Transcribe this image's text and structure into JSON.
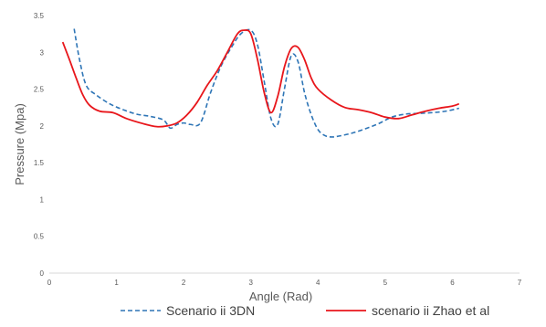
{
  "chart_data": {
    "type": "line",
    "title": "",
    "xlabel": "Angle (Rad)",
    "ylabel": "Pressure (Mpa)",
    "xlim": [
      0,
      7
    ],
    "ylim": [
      0,
      3.5
    ],
    "x_ticks": [
      "0",
      "1",
      "2",
      "3",
      "4",
      "5",
      "6",
      "7"
    ],
    "y_ticks": [
      "0",
      "0.5",
      "1",
      "1.5",
      "2",
      "2.5",
      "3",
      "3.5"
    ],
    "grid": false,
    "legend_position": "bottom",
    "series": [
      {
        "name": "Scenario ii 3DN",
        "color": "#2E75B6",
        "style": "dashed",
        "x": [
          0.37,
          0.45,
          0.55,
          0.7,
          0.9,
          1.1,
          1.3,
          1.5,
          1.7,
          1.8,
          1.9,
          2.0,
          2.1,
          2.25,
          2.4,
          2.55,
          2.7,
          2.85,
          3.0,
          3.1,
          3.2,
          3.3,
          3.4,
          3.5,
          3.6,
          3.7,
          3.8,
          3.9,
          4.0,
          4.1,
          4.2,
          4.3,
          4.5,
          4.7,
          4.9,
          5.1,
          5.3,
          5.5,
          5.7,
          5.9,
          6.1
        ],
        "values": [
          3.32,
          2.9,
          2.55,
          2.42,
          2.3,
          2.22,
          2.16,
          2.13,
          2.08,
          1.97,
          2.02,
          2.04,
          2.02,
          2.04,
          2.45,
          2.8,
          3.05,
          3.25,
          3.3,
          3.1,
          2.6,
          2.1,
          2.02,
          2.5,
          2.95,
          2.88,
          2.45,
          2.15,
          1.95,
          1.87,
          1.85,
          1.86,
          1.9,
          1.96,
          2.03,
          2.12,
          2.16,
          2.17,
          2.18,
          2.2,
          2.24
        ]
      },
      {
        "name": "scenario ii Zhao et al",
        "color": "#E8161B",
        "style": "solid",
        "x": [
          0.2,
          0.3,
          0.4,
          0.5,
          0.6,
          0.75,
          0.95,
          1.15,
          1.4,
          1.6,
          1.75,
          1.9,
          2.05,
          2.2,
          2.35,
          2.5,
          2.65,
          2.8,
          2.9,
          3.0,
          3.1,
          3.2,
          3.3,
          3.4,
          3.5,
          3.6,
          3.7,
          3.8,
          3.9,
          4.0,
          4.2,
          4.4,
          4.6,
          4.8,
          5.0,
          5.2,
          5.4,
          5.6,
          5.8,
          6.0,
          6.1
        ],
        "values": [
          3.14,
          2.9,
          2.65,
          2.42,
          2.28,
          2.2,
          2.18,
          2.1,
          2.03,
          1.99,
          2.0,
          2.04,
          2.15,
          2.32,
          2.55,
          2.75,
          3.0,
          3.25,
          3.3,
          3.25,
          2.9,
          2.45,
          2.18,
          2.4,
          2.8,
          3.05,
          3.07,
          2.9,
          2.65,
          2.5,
          2.35,
          2.25,
          2.22,
          2.18,
          2.12,
          2.1,
          2.15,
          2.2,
          2.24,
          2.27,
          2.3
        ]
      }
    ]
  }
}
